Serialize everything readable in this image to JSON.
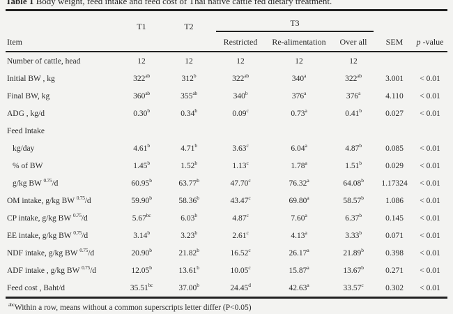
{
  "page": {
    "title_prefix": "Table 1",
    "title_rest": " Body weight, feed intake and feed cost of Thai native cattle fed dietary treatment.",
    "footnote_sup": "abc",
    "footnote_text": "Within a row, means without  a common  superscripts letter differ (P<0.05)"
  },
  "colors": {
    "ink": "#242424",
    "paper": "#f3f3f1",
    "rule": "#1c1c1c"
  },
  "table": {
    "headers": {
      "item": "Item",
      "t1": "T1",
      "t2": "T2",
      "t3": "T3",
      "restricted": "Restricted",
      "realimentation": "Re-alimentation",
      "overall": "Over all",
      "sem": "SEM",
      "p_italic": "p",
      "p_rest": " -value"
    },
    "rows": [
      {
        "l": "Number of cattle, head",
        "s": "",
        "t": "",
        "ind": false,
        "v": [
          [
            "12",
            ""
          ],
          [
            "12",
            ""
          ],
          [
            "12",
            ""
          ],
          [
            "12",
            ""
          ],
          [
            "12",
            ""
          ]
        ],
        "sem": "",
        "p": ""
      },
      {
        "l": "Initial BW , kg",
        "s": "",
        "t": "",
        "ind": false,
        "v": [
          [
            "322",
            "ab"
          ],
          [
            "312",
            "b"
          ],
          [
            "322",
            "ab"
          ],
          [
            "340",
            "a"
          ],
          [
            "322",
            "ab"
          ]
        ],
        "sem": "3.001",
        "p": "< 0.01"
      },
      {
        "l": "Final BW, kg",
        "s": "",
        "t": "",
        "ind": false,
        "v": [
          [
            "360",
            "ab"
          ],
          [
            "355",
            "ab"
          ],
          [
            "340",
            "b"
          ],
          [
            "376",
            "a"
          ],
          [
            "376",
            "a"
          ]
        ],
        "sem": "4.110",
        "p": "< 0.01"
      },
      {
        "l": "ADG , kg/d",
        "s": "",
        "t": "",
        "ind": false,
        "v": [
          [
            "0.30",
            "b"
          ],
          [
            "0.34",
            "b"
          ],
          [
            "0.09",
            "c"
          ],
          [
            "0.73",
            "a"
          ],
          [
            "0.41",
            "b"
          ]
        ],
        "sem": "0.027",
        "p": "< 0.01"
      },
      {
        "l": "Feed Intake",
        "s": "",
        "t": "",
        "ind": false,
        "v": [],
        "sem": "",
        "p": ""
      },
      {
        "l": "kg/day",
        "s": "",
        "t": "",
        "ind": true,
        "v": [
          [
            "4.61",
            "b"
          ],
          [
            "4.71",
            "b"
          ],
          [
            "3.63",
            "c"
          ],
          [
            "6.04",
            "a"
          ],
          [
            "4.87",
            "b"
          ]
        ],
        "sem": "0.085",
        "p": "< 0.01"
      },
      {
        "l": "% of BW",
        "s": "",
        "t": "",
        "ind": true,
        "v": [
          [
            "1.45",
            "b"
          ],
          [
            "1.52",
            "b"
          ],
          [
            "1.13",
            "c"
          ],
          [
            "1.78",
            "a"
          ],
          [
            "1.51",
            "b"
          ]
        ],
        "sem": "0.029",
        "p": "< 0.01"
      },
      {
        "l": "g/kg BW ",
        "s": "0.75",
        "t": "/d",
        "ind": true,
        "v": [
          [
            "60.95",
            "b"
          ],
          [
            "63.77",
            "b"
          ],
          [
            "47.70",
            "c"
          ],
          [
            "76.32",
            "a"
          ],
          [
            "64.08",
            "b"
          ]
        ],
        "sem": "1.17324",
        "p": "< 0.01"
      },
      {
        "l": "OM intake, g/kg BW ",
        "s": "0.75",
        "t": "/d",
        "ind": false,
        "v": [
          [
            "59.90",
            "b"
          ],
          [
            "58.36",
            "b"
          ],
          [
            "43.47",
            "c"
          ],
          [
            "69.80",
            "a"
          ],
          [
            "58.57",
            "b"
          ]
        ],
        "sem": "1.086",
        "p": "< 0.01"
      },
      {
        "l": "CP intake, g/kg BW ",
        "s": "0.75",
        "t": "/d",
        "ind": false,
        "v": [
          [
            "5.67",
            "bc"
          ],
          [
            "6.03",
            "b"
          ],
          [
            "4.87",
            "c"
          ],
          [
            "7.60",
            "a"
          ],
          [
            "6.37",
            "b"
          ]
        ],
        "sem": "0.145",
        "p": "< 0.01"
      },
      {
        "l": "EE intake, g/kg BW ",
        "s": "0.75",
        "t": "/d",
        "ind": false,
        "v": [
          [
            "3.14",
            "b"
          ],
          [
            "3.23",
            "b"
          ],
          [
            "2.61",
            "c"
          ],
          [
            "4.13",
            "a"
          ],
          [
            "3.33",
            "b"
          ]
        ],
        "sem": "0.071",
        "p": "< 0.01"
      },
      {
        "l": "NDF intake, g/kg BW ",
        "s": "0.75",
        "t": "/d",
        "ind": false,
        "v": [
          [
            "20.90",
            "b"
          ],
          [
            "21.82",
            "b"
          ],
          [
            "16.52",
            "c"
          ],
          [
            "26.17",
            "a"
          ],
          [
            "21.89",
            "b"
          ]
        ],
        "sem": "0.398",
        "p": "< 0.01"
      },
      {
        "l": "ADF intake , g/kg BW ",
        "s": "0.75",
        "t": "/d",
        "ind": false,
        "v": [
          [
            "12.05",
            "b"
          ],
          [
            "13.61",
            "b"
          ],
          [
            "10.05",
            "c"
          ],
          [
            "15.87",
            "a"
          ],
          [
            "13.67",
            "b"
          ]
        ],
        "sem": "0.271",
        "p": "< 0.01"
      },
      {
        "l": "Feed cost , Baht/d",
        "s": "",
        "t": "",
        "ind": false,
        "v": [
          [
            "35.51",
            "bc"
          ],
          [
            "37.00",
            "b"
          ],
          [
            "24.45",
            "d"
          ],
          [
            "42.63",
            "a"
          ],
          [
            "33.57",
            "c"
          ]
        ],
        "sem": "0.302",
        "p": "< 0.01"
      }
    ]
  }
}
